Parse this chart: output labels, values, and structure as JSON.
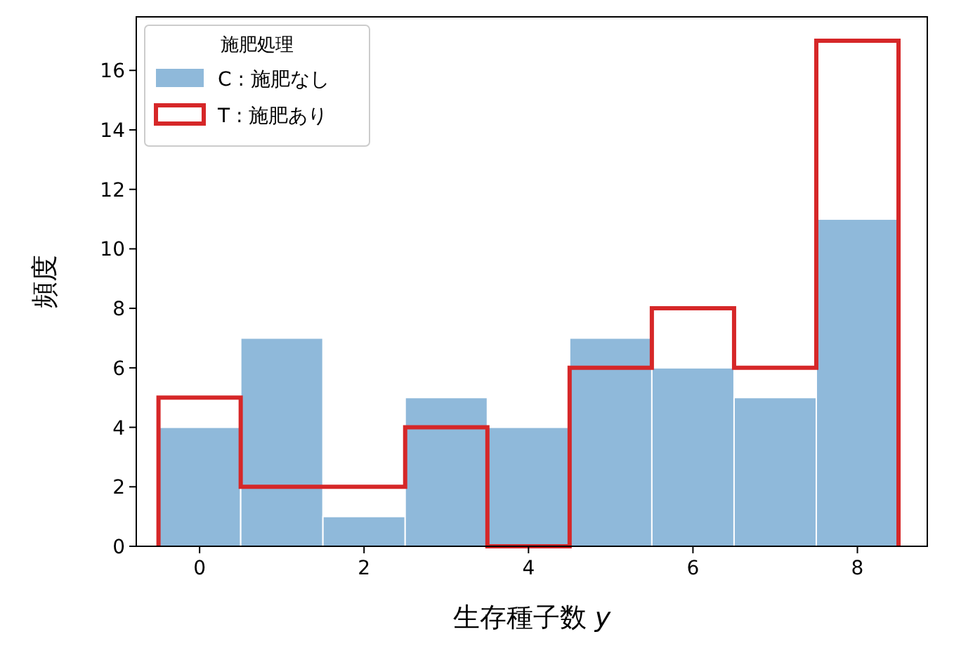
{
  "chart_data": {
    "type": "histogram",
    "xlabel": "生存種子数 *y*",
    "ylabel": "頻度",
    "legend_title": "施肥処理",
    "legend": "top left",
    "bins": [
      -0.5,
      0.5,
      1.5,
      2.5,
      3.5,
      4.5,
      5.5,
      6.5,
      7.5,
      8.5
    ],
    "series": [
      {
        "name": "C : 施肥なし",
        "color": "#8fb9da",
        "values": [
          4,
          7,
          1,
          5,
          4,
          7,
          6,
          5,
          11
        ]
      },
      {
        "name": "T : 施肥あり",
        "type": "step",
        "color": "#d62728",
        "x": [
          -0.5,
          -0.5,
          0.5,
          1.5,
          2.5,
          3.5,
          4.5,
          5.5,
          6.5,
          7.5,
          8.5
        ],
        "values": [
          0,
          5,
          2,
          2,
          4,
          0,
          6,
          8,
          6,
          17,
          0
        ]
      }
    ],
    "xlim": [
      -0.77,
      8.85
    ],
    "ylim": [
      0,
      17.8
    ],
    "xticks": [
      0,
      2,
      4,
      6,
      8
    ],
    "yticks": [
      0,
      2,
      4,
      6,
      8,
      10,
      12,
      14,
      16
    ]
  }
}
